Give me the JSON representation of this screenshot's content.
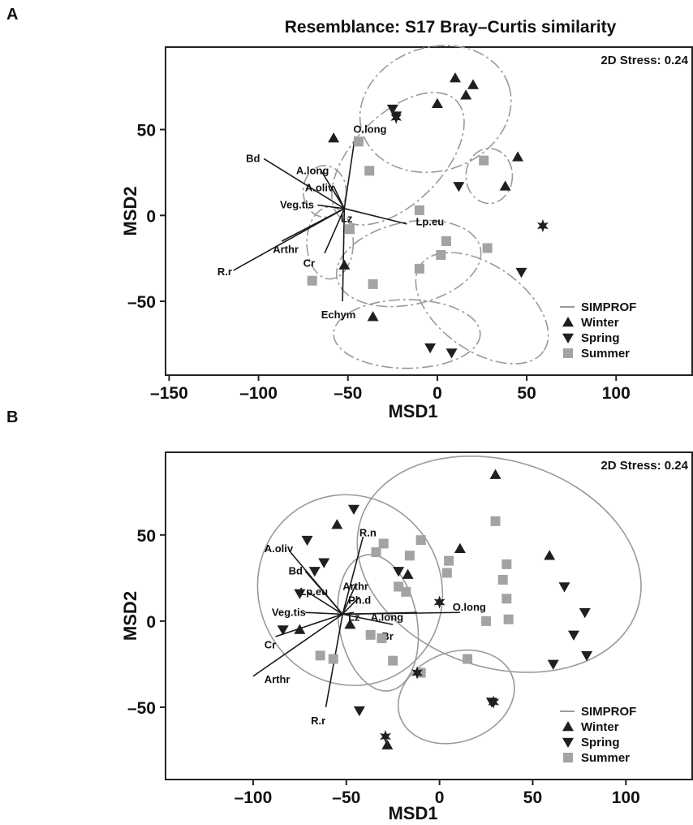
{
  "colors": {
    "marker_dark": "#1f1f1f",
    "marker_summer": "#a3a3a3",
    "ellipse": "#9a9a9a",
    "vector": "#1a1a1a"
  },
  "chart_data": [
    {
      "panel": "A",
      "type": "scatter",
      "title": "Resemblance: S17 Bray–Curtis similarity",
      "xlabel": "MSD1",
      "ylabel": "MSD2",
      "stress": "2D Stress: 0.24",
      "xticks": [
        -150,
        -100,
        -50,
        0,
        50,
        100
      ],
      "yticks": [
        50,
        0,
        -50
      ],
      "xlim": [
        -152,
        143
      ],
      "ylim": [
        -93,
        98
      ],
      "legend": {
        "position": "bottom-right",
        "entries": [
          "SIMPROF",
          "Winter",
          "Spring",
          "Summer"
        ]
      },
      "series": [
        {
          "name": "Winter",
          "marker": "triangle-up",
          "points": [
            [
              -58,
              45
            ],
            [
              -52,
              -29
            ],
            [
              -36,
              -59
            ],
            [
              0,
              65
            ],
            [
              10,
              80
            ],
            [
              16,
              70
            ],
            [
              20,
              76
            ],
            [
              38,
              17
            ],
            [
              45,
              34
            ]
          ]
        },
        {
          "name": "Spring",
          "marker": "triangle-down",
          "points": [
            [
              -25,
              62
            ],
            [
              -23,
              58
            ],
            [
              12,
              17
            ],
            [
              47,
              -33
            ],
            [
              -4,
              -77
            ],
            [
              8,
              -80
            ]
          ]
        },
        {
          "name": "Summer",
          "marker": "square",
          "points": [
            [
              -44,
              43
            ],
            [
              -38,
              26
            ],
            [
              -49,
              -8
            ],
            [
              -70,
              -38
            ],
            [
              -36,
              -40
            ],
            [
              -10,
              3
            ],
            [
              -10,
              -31
            ],
            [
              2,
              -23
            ],
            [
              5,
              -15
            ],
            [
              26,
              32
            ],
            [
              28,
              -19
            ]
          ]
        },
        {
          "name": "",
          "marker": "star",
          "points": [
            [
              -23,
              57
            ],
            [
              59,
              -6
            ]
          ]
        }
      ],
      "vectors": [
        {
          "label": "O.long",
          "end": [
            -46,
            46
          ],
          "label_pos": [
            -47,
            50
          ]
        },
        {
          "label": "Bd",
          "end": [
            -97,
            33
          ],
          "label_pos": [
            -107,
            33
          ]
        },
        {
          "label": "A.long",
          "end": [
            -65,
            26
          ],
          "label_pos": [
            -79,
            26
          ]
        },
        {
          "label": "A.oliv",
          "end": [
            -58,
            17
          ],
          "label_pos": [
            -74,
            16
          ]
        },
        {
          "label": "Veg.tis",
          "end": [
            -67,
            6
          ],
          "label_pos": [
            -88,
            6
          ]
        },
        {
          "label": "Lz",
          "end": [
            -52,
            5
          ],
          "label_pos": [
            -54,
            -2
          ]
        },
        {
          "label": "Lp.eu",
          "end": [
            -17,
            -5
          ],
          "label_pos": [
            -12,
            -4
          ]
        },
        {
          "label": "Arthr",
          "end": [
            -87,
            -15
          ],
          "label_pos": [
            -92,
            -20
          ]
        },
        {
          "label": "R.r",
          "end": [
            -114,
            -32
          ],
          "label_pos": [
            -123,
            -33
          ]
        },
        {
          "label": "Cr",
          "end": [
            -63,
            -22
          ],
          "label_pos": [
            -75,
            -28
          ]
        },
        {
          "label": "Echym",
          "end": [
            -53,
            -50
          ],
          "label_pos": [
            -65,
            -58
          ]
        }
      ],
      "ellipses": [
        [
          -1,
          62,
          43,
          36,
          -18
        ],
        [
          -22,
          33,
          46,
          26,
          -45
        ],
        [
          29,
          23,
          13,
          16,
          0
        ],
        [
          -63,
          14,
          12,
          15,
          0
        ],
        [
          -60,
          -16,
          13,
          21,
          0
        ],
        [
          -16,
          -28,
          41,
          24,
          -12
        ],
        [
          25,
          -54,
          42,
          25,
          35
        ],
        [
          -17,
          -69,
          41,
          20,
          0
        ]
      ]
    },
    {
      "panel": "B",
      "type": "scatter",
      "title": "",
      "xlabel": "MSD1",
      "ylabel": "MSD2",
      "stress": "2D Stress: 0.24",
      "xticks": [
        -100,
        -50,
        0,
        50,
        100
      ],
      "yticks": [
        50,
        0,
        -50
      ],
      "xlim": [
        -147,
        136
      ],
      "ylim": [
        -92,
        98
      ],
      "legend": {
        "position": "bottom-right",
        "entries": [
          "SIMPROF",
          "Winter",
          "Spring",
          "Summer"
        ]
      },
      "series": [
        {
          "name": "Winter",
          "marker": "triangle-up",
          "points": [
            [
              -55,
              56
            ],
            [
              -17,
              27
            ],
            [
              11,
              42
            ],
            [
              30,
              85
            ],
            [
              59,
              38
            ],
            [
              -75,
              -5
            ],
            [
              -48,
              -2
            ],
            [
              -28,
              -72
            ]
          ]
        },
        {
          "name": "Spring",
          "marker": "triangle-down",
          "points": [
            [
              -71,
              47
            ],
            [
              -62,
              34
            ],
            [
              -67,
              29
            ],
            [
              -75,
              16
            ],
            [
              -84,
              -5
            ],
            [
              -46,
              65
            ],
            [
              -22,
              29
            ],
            [
              -43,
              -52
            ],
            [
              28,
              -47
            ],
            [
              61,
              -25
            ],
            [
              67,
              20
            ],
            [
              72,
              -8
            ],
            [
              78,
              5
            ],
            [
              79,
              -20
            ]
          ]
        },
        {
          "name": "Summer",
          "marker": "square",
          "points": [
            [
              -57,
              -22
            ],
            [
              -64,
              -20
            ],
            [
              -34,
              40
            ],
            [
              -30,
              45
            ],
            [
              -16,
              38
            ],
            [
              -10,
              47
            ],
            [
              -22,
              20
            ],
            [
              -18,
              17
            ],
            [
              -37,
              -8
            ],
            [
              -31,
              -10
            ],
            [
              -25,
              -23
            ],
            [
              4,
              28
            ],
            [
              5,
              35
            ],
            [
              30,
              58
            ],
            [
              34,
              24
            ],
            [
              36,
              33
            ],
            [
              36,
              13
            ],
            [
              25,
              0
            ],
            [
              37,
              1
            ],
            [
              15,
              -22
            ],
            [
              -10,
              -30
            ]
          ]
        },
        {
          "name": "",
          "marker": "star",
          "points": [
            [
              0,
              11
            ],
            [
              -12,
              -30
            ],
            [
              29,
              -47
            ],
            [
              -29,
              -67
            ]
          ]
        }
      ],
      "vectors": [
        {
          "label": "R.n",
          "end": [
            -41,
            49
          ],
          "label_pos": [
            -43,
            51
          ]
        },
        {
          "label": "A.oliv",
          "end": [
            -80,
            40
          ],
          "label_pos": [
            -94,
            42
          ]
        },
        {
          "label": "Bd",
          "end": [
            -72,
            29
          ],
          "label_pos": [
            -81,
            29
          ]
        },
        {
          "label": "Arthr",
          "end": [
            -45,
            21
          ],
          "label_pos": [
            -52,
            20
          ]
        },
        {
          "label": "Ph.d",
          "end": [
            -43,
            14
          ],
          "label_pos": [
            -49,
            12
          ]
        },
        {
          "label": "Lp.eu",
          "end": [
            -71,
            17
          ],
          "label_pos": [
            -75,
            17
          ]
        },
        {
          "label": "Veg.tis",
          "end": [
            -72,
            5
          ],
          "label_pos": [
            -90,
            5
          ]
        },
        {
          "label": "Lz",
          "end": [
            -46,
            5
          ],
          "label_pos": [
            -49,
            2
          ]
        },
        {
          "label": "A.long",
          "end": [
            -12,
            5
          ],
          "label_pos": [
            -37,
            2
          ]
        },
        {
          "label": "O.long",
          "end": [
            11,
            5
          ],
          "label_pos": [
            7,
            8
          ]
        },
        {
          "label": "Br",
          "end": [
            -25,
            -2
          ],
          "label_pos": [
            -31,
            -9
          ]
        },
        {
          "label": "Cr",
          "end": [
            -88,
            -9
          ],
          "label_pos": [
            -94,
            -14
          ]
        },
        {
          "label": "Arthr",
          "end": [
            -100,
            -32
          ],
          "label_pos": [
            -94,
            -34
          ]
        },
        {
          "label": "R.r",
          "end": [
            -61,
            -50
          ],
          "label_pos": [
            -69,
            -58
          ]
        }
      ],
      "ellipses": [
        [
          -48,
          18,
          49,
          56,
          -28
        ],
        [
          32,
          33,
          78,
          60,
          18
        ],
        [
          -33,
          -1,
          21,
          40,
          -10
        ],
        [
          9,
          -44,
          32,
          26,
          -20
        ]
      ]
    }
  ]
}
